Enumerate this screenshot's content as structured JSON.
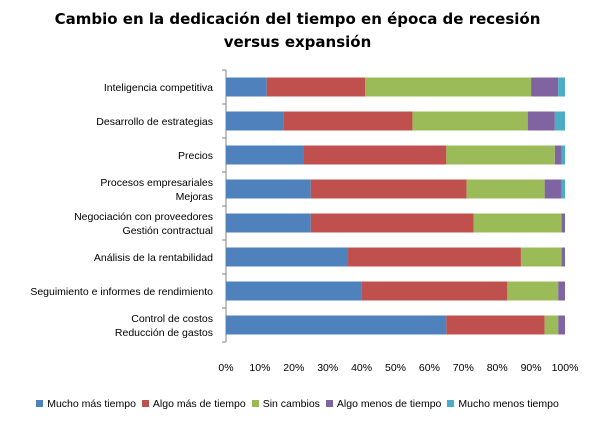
{
  "chart_data": {
    "type": "bar",
    "orientation": "horizontal",
    "stacked": "percent",
    "title_lines": [
      "Cambio en la dedicación del tiempo en época de recesión",
      "versus expansión"
    ],
    "categories": [
      [
        "Inteligencia competitiva"
      ],
      [
        "Desarrollo de estrategias"
      ],
      [
        "Precios"
      ],
      [
        "Procesos empresariales",
        "Mejoras"
      ],
      [
        "Negociación con proveedores",
        "Gestión contractual"
      ],
      [
        "Análisis de la rentabilidad"
      ],
      [
        "Seguimiento e informes de rendimiento"
      ],
      [
        "Control de costos",
        "Reducción de gastos"
      ]
    ],
    "series": [
      {
        "name": "Mucho más tiempo",
        "color": "#4f81bd",
        "values": [
          12,
          17,
          23,
          25,
          25,
          36,
          40,
          65
        ]
      },
      {
        "name": "Algo más de tiempo",
        "color": "#c0504d",
        "values": [
          29,
          38,
          42,
          46,
          48,
          51,
          43,
          29
        ]
      },
      {
        "name": "Sin cambios",
        "color": "#9bbb59",
        "values": [
          49,
          34,
          32,
          23,
          26,
          12,
          15,
          4
        ]
      },
      {
        "name": "Algo menos de tiempo",
        "color": "#8064a2",
        "values": [
          8,
          8,
          2,
          5,
          1,
          1,
          2,
          2
        ]
      },
      {
        "name": "Mucho menos tiempo",
        "color": "#4bacc6",
        "values": [
          2,
          3,
          1,
          1,
          0,
          0,
          0,
          0
        ]
      }
    ],
    "x_ticks": [
      "0%",
      "10%",
      "20%",
      "30%",
      "40%",
      "50%",
      "60%",
      "70%",
      "80%",
      "90%",
      "100%"
    ],
    "xlim": [
      0,
      100
    ],
    "grid": false,
    "legend_position": "bottom"
  }
}
